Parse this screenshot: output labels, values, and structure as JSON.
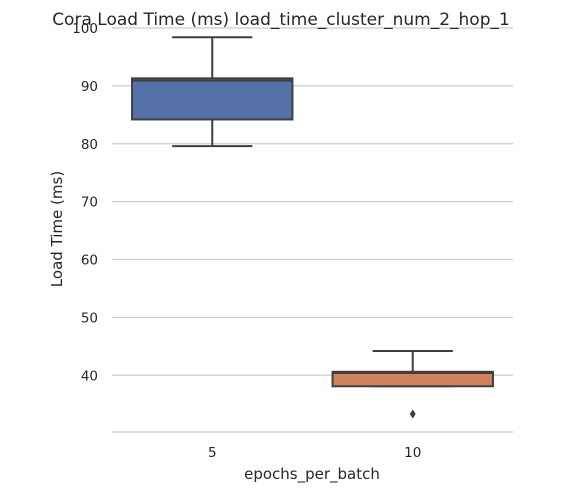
{
  "chart_data": {
    "type": "box",
    "title": "Cora Load Time (ms) load_time_cluster_num_2_hop_1",
    "xlabel": "epochs_per_batch",
    "ylabel": "Load Time (ms)",
    "categories": [
      "5",
      "10"
    ],
    "y_ticks": [
      40,
      50,
      60,
      70,
      80,
      90,
      100
    ],
    "ylim": [
      30.2,
      100
    ],
    "grid": "horizontal",
    "boxes": [
      {
        "category": "5",
        "whisker_low": 79.6,
        "q1": 84.2,
        "median": 90.9,
        "q3": 91.3,
        "whisker_high": 98.4,
        "outliers": [],
        "color": "#5572a8"
      },
      {
        "category": "10",
        "whisker_low": 38.1,
        "q1": 38.1,
        "median": 40.4,
        "q3": 40.6,
        "whisker_high": 44.2,
        "outliers": [
          33.3
        ],
        "color": "#d0825c"
      }
    ]
  }
}
